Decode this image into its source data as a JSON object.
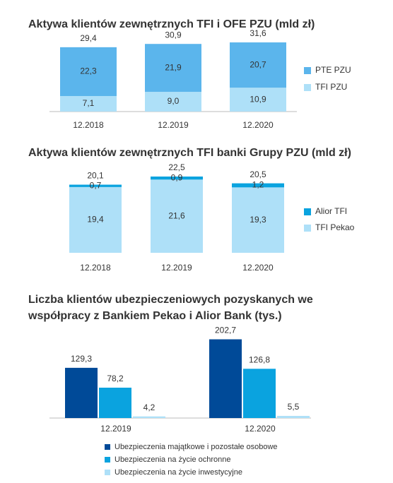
{
  "chart_data": [
    {
      "type": "stacked_bar",
      "title": "Aktywa klientów zewnętrznych TFI i OFE PZU (mld zł)",
      "categories": [
        "12.2018",
        "12.2019",
        "12.2020"
      ],
      "series": [
        {
          "name": "TFI PZU",
          "color": "#aee0f8",
          "values": [
            7.1,
            9.0,
            10.9
          ],
          "value_labels": [
            "7,1",
            "9,0",
            "10,9"
          ]
        },
        {
          "name": "PTE PZU",
          "color": "#5bb5ec",
          "values": [
            22.3,
            21.9,
            20.7
          ],
          "value_labels": [
            "22,3",
            "21,9",
            "20,7"
          ]
        }
      ],
      "totals": [
        29.4,
        30.9,
        31.6
      ],
      "total_labels": [
        "29,4",
        "30,9",
        "31,6"
      ]
    },
    {
      "type": "stacked_bar",
      "title": "Aktywa klientów zewnętrznych TFI banki Grupy PZU (mld zł)",
      "categories": [
        "12.2018",
        "12.2019",
        "12.2020"
      ],
      "series": [
        {
          "name": "TFI Pekao",
          "color": "#aee0f8",
          "values": [
            19.4,
            21.6,
            19.3
          ],
          "value_labels": [
            "19,4",
            "21,6",
            "19,3"
          ]
        },
        {
          "name": "Alior TFI",
          "color": "#0aa3df",
          "values": [
            0.7,
            0.9,
            1.2
          ],
          "value_labels": [
            "0,7",
            "0,9",
            "1,2"
          ]
        }
      ],
      "totals": [
        20.1,
        22.5,
        20.5
      ],
      "total_labels": [
        "20,1",
        "22,5",
        "20,5"
      ]
    },
    {
      "type": "grouped_bar",
      "title_lines": [
        "Liczba klientów ubezpieczeniowych pozyskanych we",
        "współpracy z Bankiem Pekao i Alior Bank (tys.)"
      ],
      "categories": [
        "12.2019",
        "12.2020"
      ],
      "series": [
        {
          "name": "Ubezpieczenia majątkowe i pozostałe osobowe",
          "color": "#004a98",
          "values": [
            129.3,
            202.7
          ],
          "value_labels": [
            "129,3",
            "202,7"
          ]
        },
        {
          "name": "Ubezpieczenia na życie ochronne",
          "color": "#0aa3df",
          "values": [
            78.2,
            126.8
          ],
          "value_labels": [
            "78,2",
            "126,8"
          ]
        },
        {
          "name": "Ubezpieczenia na życie inwestycyjne",
          "color": "#aee0f8",
          "values": [
            4.2,
            5.5
          ],
          "value_labels": [
            "4,2",
            "5,5"
          ]
        }
      ]
    }
  ]
}
